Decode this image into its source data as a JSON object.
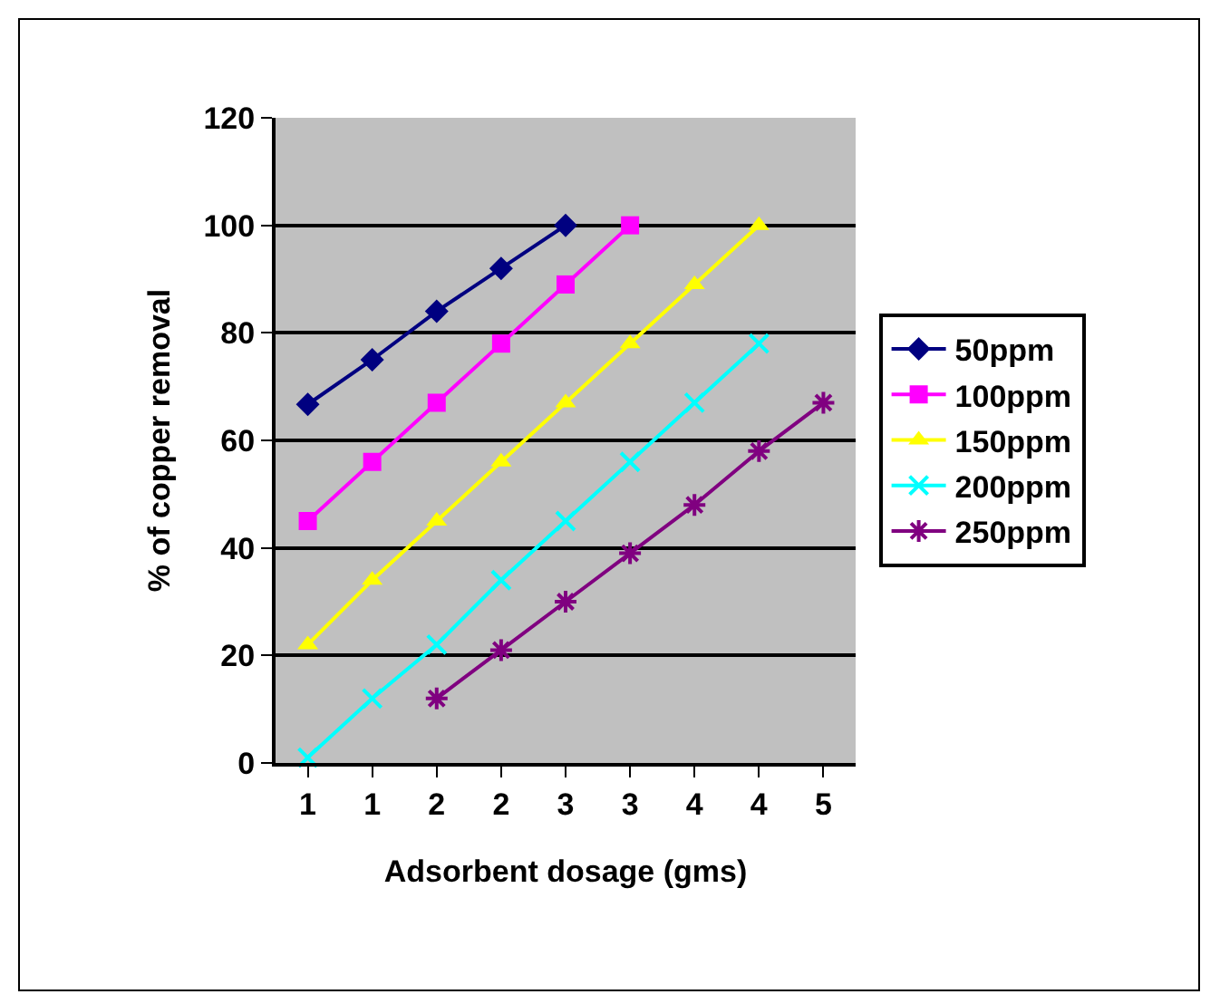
{
  "chart_data": {
    "type": "line",
    "xlabel": "Adsorbent dosage (gms)",
    "ylabel": "% of copper removal",
    "categories": [
      "1",
      "1",
      "2",
      "2",
      "3",
      "3",
      "4",
      "4",
      "5"
    ],
    "series": [
      {
        "name": "50ppm",
        "color": "#000080",
        "marker": "diamond",
        "values": [
          66.7,
          75,
          84,
          92,
          100,
          null,
          null,
          null,
          null
        ]
      },
      {
        "name": "100ppm",
        "color": "#ff00ff",
        "marker": "square",
        "values": [
          45,
          56,
          67,
          78,
          89,
          100,
          null,
          null,
          null
        ]
      },
      {
        "name": "150ppm",
        "color": "#ffff00",
        "marker": "triangle",
        "values": [
          22,
          34,
          45,
          56,
          67,
          78,
          89,
          100,
          null
        ]
      },
      {
        "name": "200ppm",
        "color": "#00ffff",
        "marker": "cross",
        "values": [
          1,
          12,
          22,
          34,
          45,
          56,
          67,
          78,
          null
        ]
      },
      {
        "name": "250ppm",
        "color": "#800080",
        "marker": "cross",
        "values": [
          null,
          null,
          12,
          21,
          30,
          39,
          48,
          58,
          67
        ]
      }
    ],
    "ylim": [
      0,
      120
    ],
    "yticks": [
      0,
      20,
      40,
      60,
      80,
      100,
      120
    ],
    "grid": "y",
    "legend": "right",
    "line_style": "solid"
  }
}
